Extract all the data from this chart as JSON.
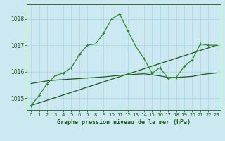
{
  "title": "Graphe pression niveau de la mer (hPa)",
  "bg_color": "#cce8f0",
  "grid_color": "#b0d8e8",
  "line_color_dark": "#1a5c1a",
  "line_color_mid": "#2e8b2e",
  "xlim": [
    -0.5,
    23.5
  ],
  "ylim": [
    1014.55,
    1018.55
  ],
  "yticks": [
    1015,
    1016,
    1017,
    1018
  ],
  "xticks": [
    0,
    1,
    2,
    3,
    4,
    5,
    6,
    7,
    8,
    9,
    10,
    11,
    12,
    13,
    14,
    15,
    16,
    17,
    18,
    19,
    20,
    21,
    22,
    23
  ],
  "series1_x": [
    0,
    1,
    2,
    3,
    4,
    5,
    6,
    7,
    8,
    9,
    10,
    11,
    12,
    13,
    14,
    15,
    16,
    17,
    18,
    19,
    20,
    21,
    22,
    23
  ],
  "series1_y": [
    1014.72,
    1015.1,
    1015.55,
    1015.85,
    1015.95,
    1016.15,
    1016.65,
    1017.0,
    1017.05,
    1017.45,
    1018.0,
    1018.18,
    1017.55,
    1016.95,
    1016.5,
    1015.95,
    1016.15,
    1015.75,
    1015.78,
    1016.2,
    1016.45,
    1017.05,
    1017.0,
    1017.0
  ],
  "series2_x": [
    0,
    1,
    2,
    3,
    4,
    5,
    6,
    7,
    8,
    9,
    10,
    11,
    12,
    13,
    14,
    15,
    16,
    17,
    18,
    19,
    20,
    21,
    22,
    23
  ],
  "series2_y": [
    1015.55,
    1015.6,
    1015.65,
    1015.68,
    1015.7,
    1015.72,
    1015.74,
    1015.76,
    1015.78,
    1015.8,
    1015.83,
    1015.86,
    1015.88,
    1015.9,
    1015.92,
    1015.88,
    1015.84,
    1015.78,
    1015.78,
    1015.8,
    1015.82,
    1015.88,
    1015.92,
    1015.95
  ],
  "series3_x": [
    0,
    23
  ],
  "series3_y": [
    1014.72,
    1017.0
  ]
}
